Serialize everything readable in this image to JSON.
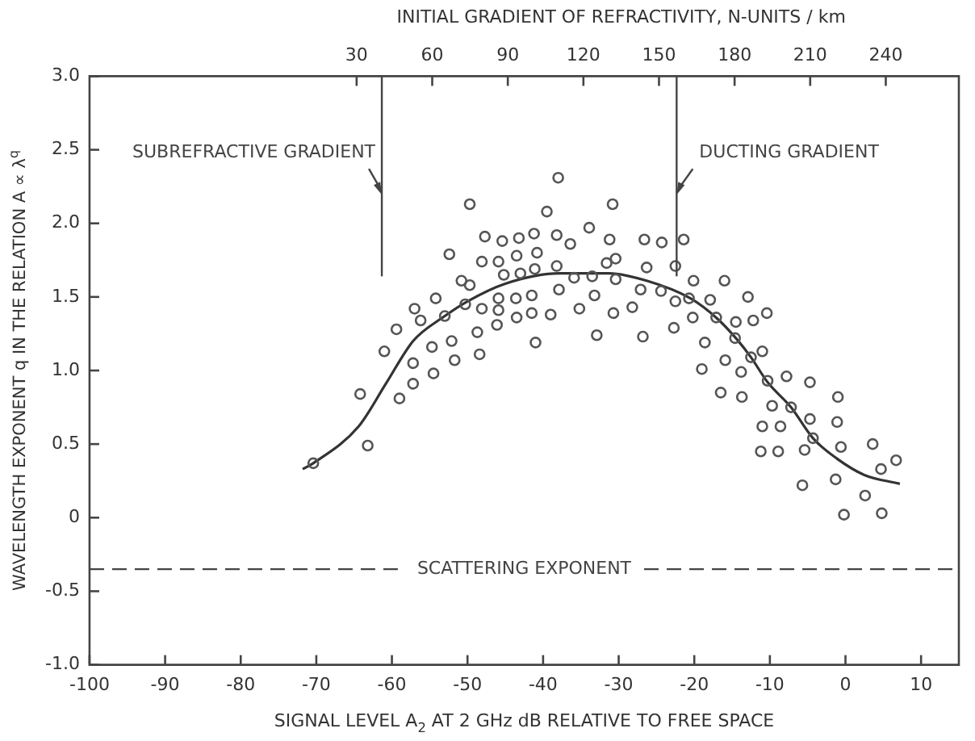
{
  "chart_data": {
    "type": "scatter",
    "xlabel": "SIGNAL LEVEL A$_{2}$ AT 2 GHz dB RELATIVE TO FREE SPACE",
    "ylabel": "WAVELENGTH EXPONENT q IN THE RELATION A ∝ λ$^{q}$",
    "x2label": "INITIAL GRADIENT OF REFRACTIVITY, N-UNITS / km",
    "xlim": [
      -100,
      15
    ],
    "xticks": [
      -100,
      -90,
      -80,
      -70,
      -60,
      -50,
      -40,
      -30,
      -20,
      -10,
      0,
      10
    ],
    "x2lim": [
      -76,
      269
    ],
    "x2ticks": [
      30,
      60,
      90,
      120,
      150,
      180,
      210,
      240
    ],
    "ylim": [
      -1,
      3
    ],
    "yticks": [
      {
        "value": -1,
        "label": "-1.0"
      },
      -0.5,
      0,
      0.5,
      {
        "value": 1,
        "label": "1.0"
      },
      1.5,
      {
        "value": 2,
        "label": "2.0"
      },
      2.5,
      {
        "value": 3,
        "label": "3.0"
      }
    ],
    "grid": false,
    "legend": false,
    "marker": "circle",
    "ref_lines": [
      {
        "axis": "x2",
        "value": 40,
        "label": "SUBREFRACTIVE GRADIENT",
        "color": "#444444"
      },
      {
        "axis": "x2",
        "value": 157,
        "label": "DUCTING GRADIENT",
        "color": "#444444"
      },
      {
        "axis": "y",
        "value": -0.35,
        "label": "SCATTERING EXPONENT",
        "color": "#444444",
        "line_style": "dashed"
      }
    ],
    "series": [
      {
        "color": "#555555",
        "x": [
          -38.0,
          -49.7,
          -30.8,
          -39.5,
          -33.9,
          -47.7,
          -45.4,
          -43.2,
          -41.2,
          -38.2,
          -36.4,
          -31.2,
          -26.6,
          -24.3,
          -21.4,
          -52.4,
          -48.1,
          -45.9,
          -43.5,
          -40.8,
          -38.2,
          -45.2,
          -43.0,
          -41.1,
          -35.9,
          -33.5,
          -31.6,
          -30.4,
          -30.4,
          -26.3,
          -22.5,
          -50.8,
          -49.7,
          -54.2,
          -57.0,
          -56.2,
          -50.3,
          -53.0,
          -48.1,
          -45.9,
          -45.9,
          -43.6,
          -41.5,
          -41.5,
          -43.5,
          -39.0,
          -37.9,
          -35.2,
          -33.2,
          -30.7,
          -28.2,
          -27.1,
          -24.4,
          -22.5,
          -20.1,
          -20.2,
          -22.7,
          -26.8,
          -32.9,
          -41.0,
          -46.1,
          -48.7,
          -48.4,
          -51.7,
          -52.1,
          -54.7,
          -54.5,
          -57.2,
          -57.2,
          -59.0,
          -59.4,
          -61.0,
          -64.2,
          -63.2,
          -70.4,
          -18.6,
          -19.0,
          -17.9,
          -20.7,
          -16.0,
          -17.1,
          -12.9,
          -14.5,
          -12.2,
          -10.4,
          -14.6,
          -15.9,
          -12.5,
          -11.0,
          -13.8,
          -16.5,
          -13.7,
          -10.3,
          -7.8,
          -4.7,
          -9.7,
          -7.2,
          -11.0,
          -8.6,
          -4.7,
          -4.3,
          -1.0,
          -1.1,
          -0.6,
          3.6,
          -11.2,
          -8.9,
          -5.4,
          -5.7,
          -1.3,
          4.7,
          6.7,
          2.6,
          -0.2,
          4.8
        ],
        "values": [
          2.31,
          2.13,
          2.13,
          2.08,
          1.97,
          1.91,
          1.88,
          1.9,
          1.93,
          1.92,
          1.86,
          1.89,
          1.89,
          1.87,
          1.89,
          1.79,
          1.74,
          1.74,
          1.78,
          1.8,
          1.71,
          1.65,
          1.66,
          1.69,
          1.63,
          1.64,
          1.73,
          1.76,
          1.62,
          1.7,
          1.71,
          1.61,
          1.58,
          1.49,
          1.42,
          1.34,
          1.45,
          1.37,
          1.42,
          1.49,
          1.41,
          1.49,
          1.51,
          1.39,
          1.36,
          1.38,
          1.55,
          1.42,
          1.51,
          1.39,
          1.43,
          1.55,
          1.54,
          1.47,
          1.61,
          1.36,
          1.29,
          1.23,
          1.24,
          1.19,
          1.31,
          1.26,
          1.11,
          1.07,
          1.2,
          1.16,
          0.98,
          1.05,
          0.91,
          0.81,
          1.28,
          1.13,
          0.84,
          0.49,
          0.37,
          1.19,
          1.01,
          1.48,
          1.49,
          1.61,
          1.36,
          1.5,
          1.33,
          1.34,
          1.39,
          1.22,
          1.07,
          1.09,
          1.13,
          0.99,
          0.85,
          0.82,
          0.93,
          0.96,
          0.92,
          0.76,
          0.75,
          0.62,
          0.62,
          0.67,
          0.54,
          0.82,
          0.65,
          0.48,
          0.5,
          0.45,
          0.45,
          0.46,
          0.22,
          0.26,
          0.33,
          0.39,
          0.15,
          0.02,
          0.03
        ]
      },
      {
        "type": "line",
        "color": "#333333",
        "marker": "none",
        "line_style": "solid",
        "x": [
          -71.8,
          -70.4,
          -64.4,
          -60.8,
          -57.2,
          -53.0,
          -50.0,
          -45.0,
          -37.8,
          -31.3,
          -26.3,
          -20.5,
          -16.9,
          -14.5,
          -12.5,
          -10.3,
          -7.2,
          -4.3,
          -1.1,
          2.5,
          7.2
        ],
        "values": [
          0.33,
          0.37,
          0.62,
          0.91,
          1.2,
          1.37,
          1.47,
          1.59,
          1.66,
          1.66,
          1.61,
          1.49,
          1.35,
          1.22,
          1.09,
          0.92,
          0.75,
          0.54,
          0.4,
          0.29,
          0.23
        ]
      }
    ]
  }
}
